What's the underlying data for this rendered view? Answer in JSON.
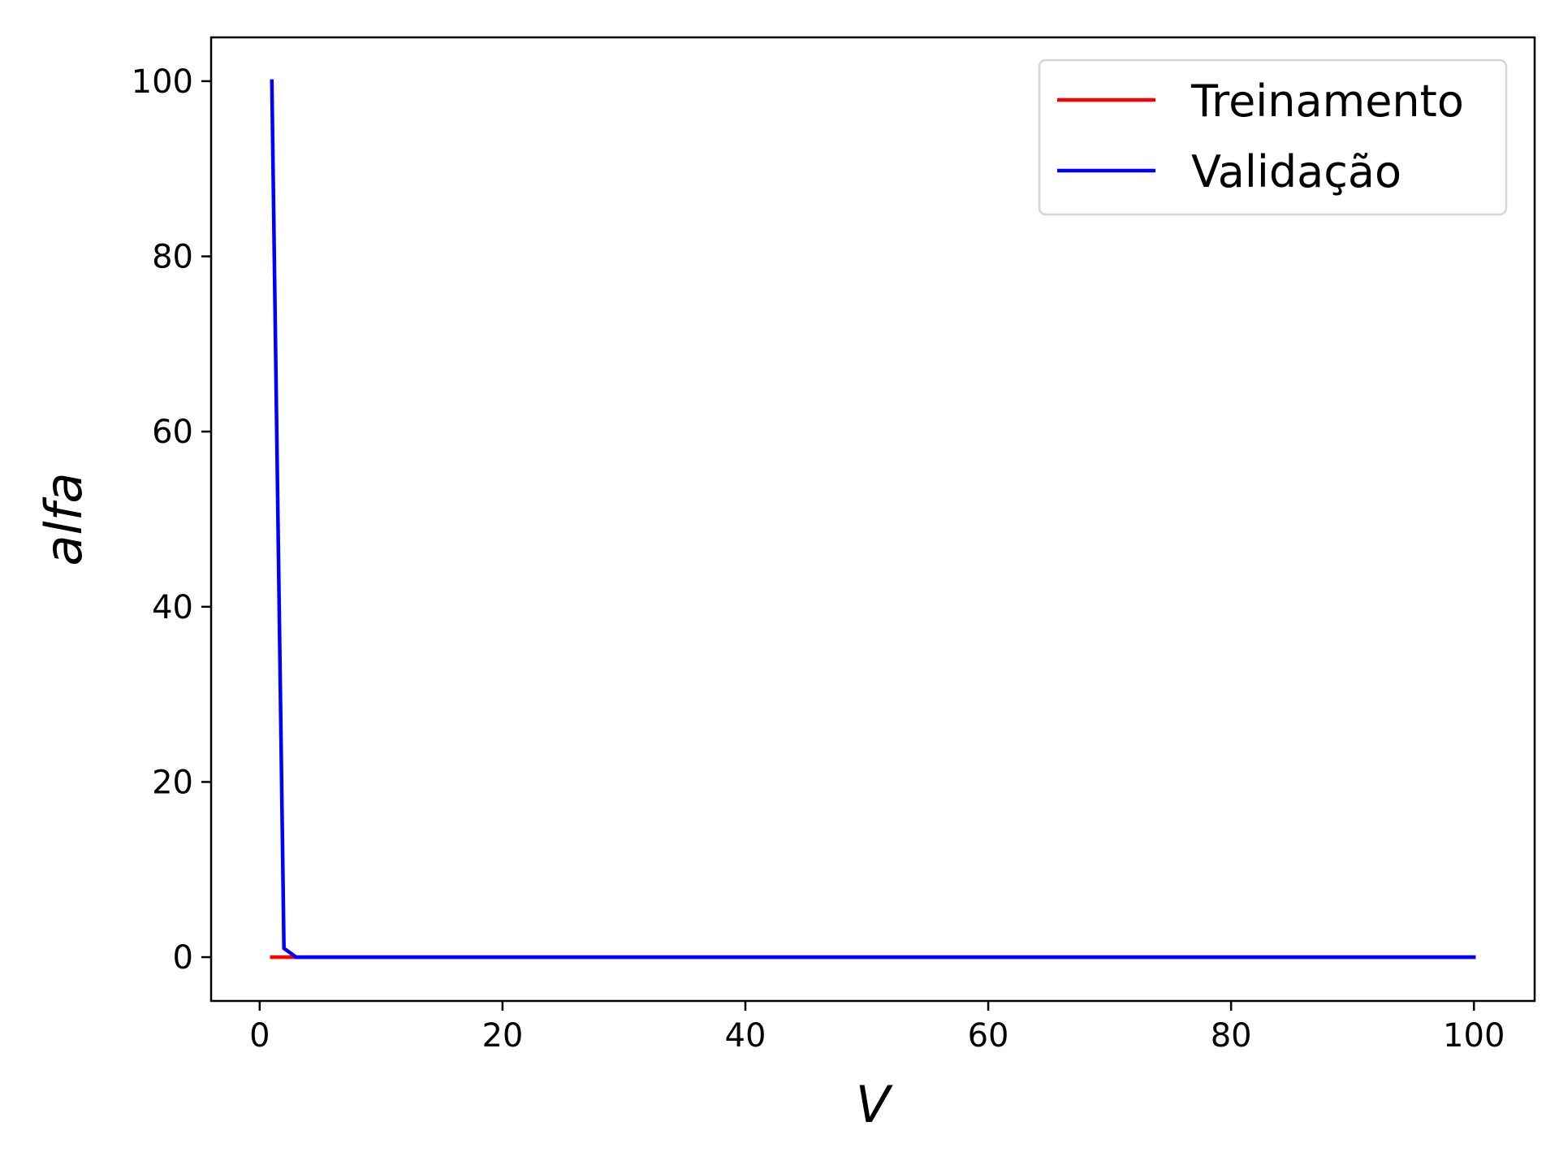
{
  "chart_data": {
    "type": "line",
    "xlabel": "V",
    "ylabel": "alfa",
    "xlim": [
      -4,
      105
    ],
    "ylim": [
      -5,
      105
    ],
    "xticks": [
      0,
      20,
      40,
      60,
      80,
      100
    ],
    "yticks": [
      0,
      20,
      40,
      60,
      80,
      100
    ],
    "grid": false,
    "legend_position": "top-right",
    "series": [
      {
        "name": "Treinamento",
        "color": "#ff0000",
        "x": [
          1,
          2,
          3,
          5,
          10,
          20,
          30,
          40,
          50,
          60,
          70,
          80,
          90,
          100
        ],
        "y": [
          0,
          0,
          0,
          0,
          0,
          0,
          0,
          0,
          0,
          0,
          0,
          0,
          0,
          0
        ]
      },
      {
        "name": "Validação",
        "color": "#0000ff",
        "x": [
          1,
          2,
          3,
          5,
          10,
          20,
          30,
          40,
          50,
          60,
          70,
          80,
          90,
          100
        ],
        "y": [
          100,
          1,
          0,
          0,
          0,
          0,
          0,
          0,
          0,
          0,
          0,
          0,
          0,
          0
        ]
      }
    ]
  }
}
